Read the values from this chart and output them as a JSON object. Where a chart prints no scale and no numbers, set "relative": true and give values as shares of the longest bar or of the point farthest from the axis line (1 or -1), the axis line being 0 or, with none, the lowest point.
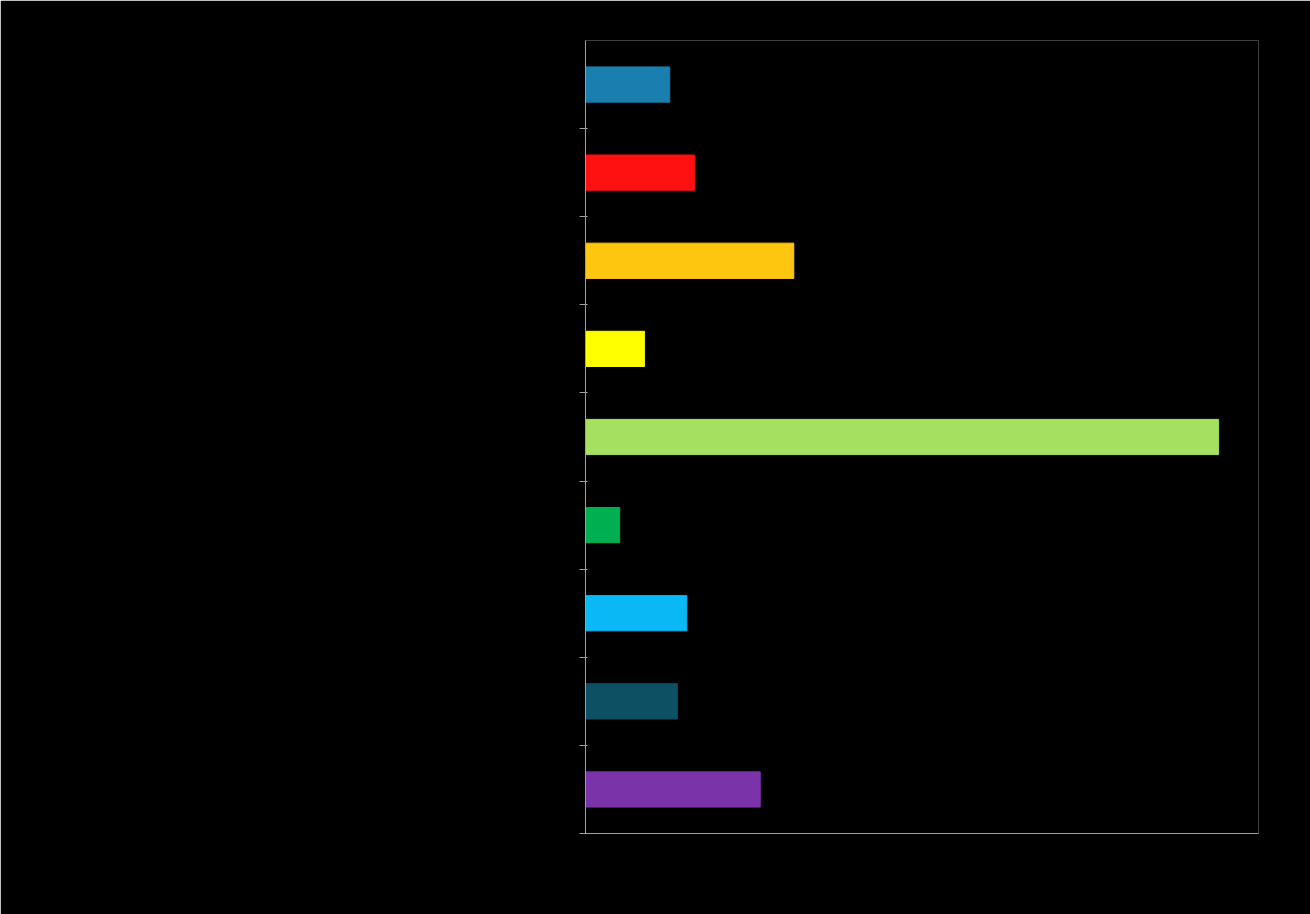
{
  "chart_data": {
    "type": "bar",
    "orientation": "horizontal",
    "relative": true,
    "categories": [
      null,
      null,
      null,
      null,
      null,
      null,
      null,
      null,
      null
    ],
    "values": [
      0.133,
      0.172,
      0.329,
      0.093,
      1,
      0.054,
      0.16,
      0.145,
      0.276
    ],
    "colors": [
      "#1a7fae",
      "#ff1010",
      "#ffc60f",
      "#ffff00",
      "#a5e060",
      "#00b050",
      "#0ab8f5",
      "#0d5064",
      "#7a33a8"
    ],
    "tick_labels": false,
    "grid": false
  }
}
